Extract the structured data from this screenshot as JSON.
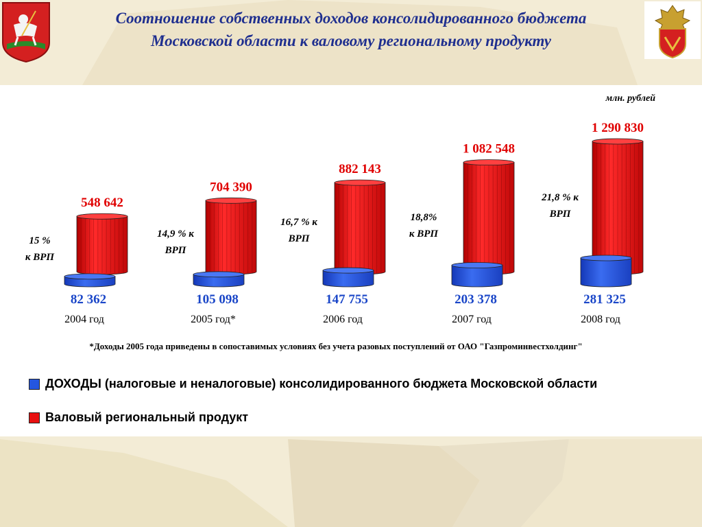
{
  "title_line1": "Соотношение собственных доходов консолидированного бюджета",
  "title_line2": "Московской области к валовому региональному продукту",
  "unit": "млн. рублей",
  "footnote": "*Доходы 2005 года приведены в сопоставимых условиях без учета разовых поступлений от ОАО \"Газпроминвестхолдинг\"",
  "colors": {
    "revenue": "#2456e0",
    "grp": "#e81010",
    "title": "#1f2f8f",
    "revenue_label": "#1a46c8",
    "grp_label": "#e00000"
  },
  "chart_data": {
    "type": "bar",
    "categories": [
      "2004 год",
      "2005 год*",
      "2006 год",
      "2007 год",
      "2008 год"
    ],
    "series": [
      {
        "name": "ДОХОДЫ (налоговые и неналоговые) консолидированного бюджета Московской области",
        "values": [
          82362,
          105098,
          147755,
          203378,
          281325
        ],
        "labels": [
          "82 362",
          "105 098",
          "147 755",
          "203 378",
          "281 325"
        ]
      },
      {
        "name": "Валовый региональный продукт",
        "values": [
          548642,
          704390,
          882143,
          1082548,
          1290830
        ],
        "labels": [
          "548 642",
          "704 390",
          "882 143",
          "1 082 548",
          "1 290 830"
        ]
      }
    ],
    "ratio_labels": [
      [
        "15 %",
        "к ВРП"
      ],
      [
        "14,9 % к",
        "ВРП"
      ],
      [
        "16,7 % к",
        "ВРП"
      ],
      [
        "18,8%",
        "к ВРП"
      ],
      [
        "21,8 % к",
        "ВРП"
      ]
    ],
    "legend": "bottom-left"
  }
}
